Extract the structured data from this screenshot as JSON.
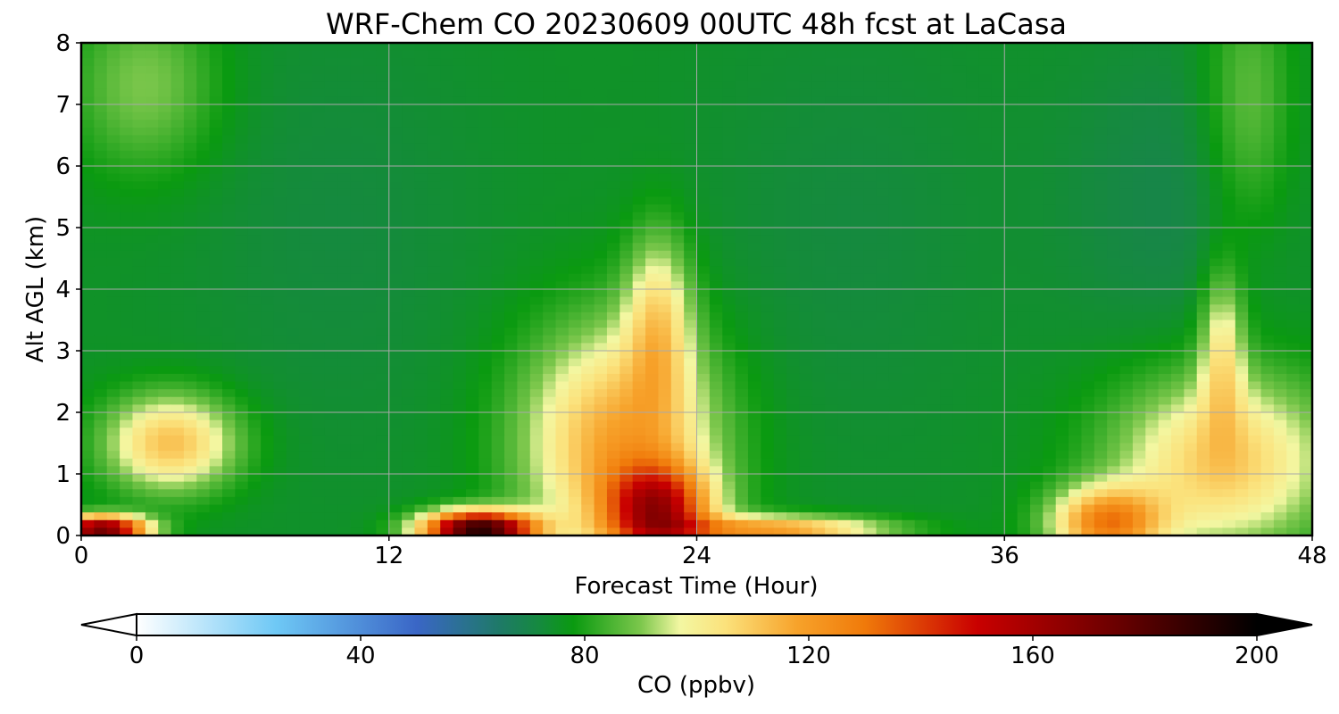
{
  "chart_data": {
    "type": "heatmap",
    "title": "WRF-Chem CO  20230609 00UTC 48h fcst at LaCasa",
    "xlabel": "Forecast Time (Hour)",
    "ylabel": "Alt AGL (km)",
    "xlim": [
      0,
      48
    ],
    "ylim": [
      0,
      8
    ],
    "x_ticks": [
      0,
      12,
      24,
      36,
      48
    ],
    "y_ticks": [
      0,
      1,
      2,
      3,
      4,
      5,
      6,
      7,
      8
    ],
    "grid": true,
    "colorbar": {
      "label": "CO  (ppbv)",
      "min": 0,
      "max": 200,
      "ticks": [
        0,
        40,
        80,
        120,
        160,
        200
      ],
      "extend": "both",
      "orientation": "horizontal",
      "placement": "bottom",
      "stops": [
        {
          "value": 0,
          "color": "#ffffff"
        },
        {
          "value": 25,
          "color": "#6ec8f5"
        },
        {
          "value": 50,
          "color": "#3a66c6"
        },
        {
          "value": 65,
          "color": "#1e7a66"
        },
        {
          "value": 72,
          "color": "#158a3e"
        },
        {
          "value": 78,
          "color": "#0a9a10"
        },
        {
          "value": 90,
          "color": "#7cc74c"
        },
        {
          "value": 97,
          "color": "#f3f7a2"
        },
        {
          "value": 105,
          "color": "#fbe27c"
        },
        {
          "value": 118,
          "color": "#f7a22a"
        },
        {
          "value": 130,
          "color": "#f07a0a"
        },
        {
          "value": 150,
          "color": "#c90000"
        },
        {
          "value": 175,
          "color": "#6a0000"
        },
        {
          "value": 200,
          "color": "#000000"
        }
      ]
    },
    "field_description_points": {
      "background_ppbv": 75,
      "features": [
        {
          "x_hour": 3.5,
          "alt_km": 1.5,
          "co_ppbv": 112,
          "sx": 1.8,
          "sy": 0.55
        },
        {
          "x_hour": 0.8,
          "alt_km": 0.1,
          "co_ppbv": 175,
          "sx": 1.2,
          "sy": 0.15
        },
        {
          "x_hour": 15.5,
          "alt_km": 0.1,
          "co_ppbv": 190,
          "sx": 1.5,
          "sy": 0.2
        },
        {
          "x_hour": 21,
          "alt_km": 1.5,
          "co_ppbv": 118,
          "sx": 2.6,
          "sy": 1.3
        },
        {
          "x_hour": 22.5,
          "alt_km": 3.5,
          "co_ppbv": 102,
          "sx": 0.9,
          "sy": 1.0
        },
        {
          "x_hour": 22.5,
          "alt_km": 0.4,
          "co_ppbv": 140,
          "sx": 1.4,
          "sy": 0.5
        },
        {
          "x_hour": 27,
          "alt_km": 0.1,
          "co_ppbv": 120,
          "sx": 3.0,
          "sy": 0.15
        },
        {
          "x_hour": 44.5,
          "alt_km": 1.2,
          "co_ppbv": 110,
          "sx": 3.0,
          "sy": 1.0
        },
        {
          "x_hour": 44.5,
          "alt_km": 3.0,
          "co_ppbv": 100,
          "sx": 0.6,
          "sy": 0.9
        },
        {
          "x_hour": 40,
          "alt_km": 0.2,
          "co_ppbv": 125,
          "sx": 1.5,
          "sy": 0.4
        },
        {
          "x_hour": 2.5,
          "alt_km": 7.3,
          "co_ppbv": 90,
          "sx": 2.0,
          "sy": 1.0
        },
        {
          "x_hour": 45.5,
          "alt_km": 7.0,
          "co_ppbv": 88,
          "sx": 1.2,
          "sy": 1.5
        },
        {
          "x_hour": 42.5,
          "alt_km": 5.5,
          "co_ppbv": 70,
          "sx": 3.0,
          "sy": 1.8
        },
        {
          "x_hour": 10,
          "alt_km": 5.0,
          "co_ppbv": 72,
          "sx": 4.0,
          "sy": 2.5
        },
        {
          "x_hour": 30,
          "alt_km": 5.0,
          "co_ppbv": 72,
          "sx": 4.0,
          "sy": 2.5
        }
      ]
    }
  }
}
